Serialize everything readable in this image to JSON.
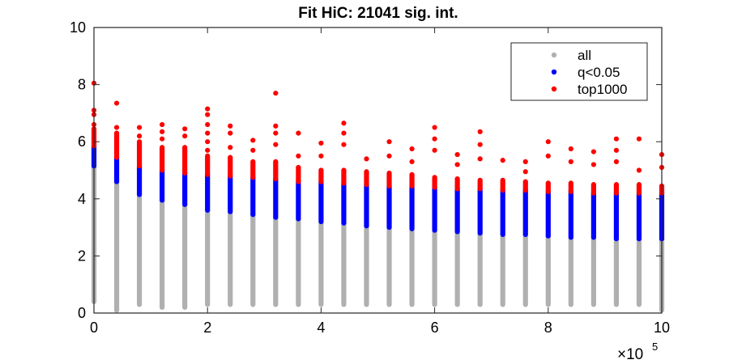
{
  "chart_data": {
    "type": "scatter",
    "title": "Fit HiC: 21041 sig. int.",
    "xlabel": "",
    "ylabel": "",
    "xlim": [
      0,
      1000000
    ],
    "ylim": [
      0,
      10
    ],
    "x_ticks": [
      0,
      200000,
      400000,
      600000,
      800000,
      1000000
    ],
    "x_tick_labels": [
      "0",
      "2",
      "4",
      "6",
      "8",
      "10"
    ],
    "x_exponent": {
      "base": "×10",
      "power": "5"
    },
    "y_ticks": [
      0,
      2,
      4,
      6,
      8,
      10
    ],
    "y_tick_labels": [
      "0",
      "2",
      "4",
      "6",
      "8",
      "10"
    ],
    "grid": false,
    "legend": {
      "position": "top-right",
      "entries": [
        {
          "label": "all",
          "color": "#b0b0b0"
        },
        {
          "label": "q<0.05",
          "color": "#0000ff"
        },
        {
          "label": "top1000",
          "color": "#ff0000"
        }
      ]
    },
    "distance_bins": [
      0,
      40000,
      80000,
      120000,
      160000,
      200000,
      240000,
      280000,
      320000,
      360000,
      400000,
      440000,
      480000,
      520000,
      560000,
      600000,
      640000,
      680000,
      720000,
      760000,
      800000,
      840000,
      880000,
      920000,
      960000,
      1000000
    ],
    "series": [
      {
        "name": "all",
        "color": "#b0b0b0",
        "ymin": [
          0.4,
          0.1,
          0.3,
          0.2,
          0.2,
          0.3,
          0.3,
          0.3,
          0.3,
          0.3,
          0.3,
          0.3,
          0.3,
          0.3,
          0.3,
          0.3,
          0.3,
          0.3,
          0.3,
          0.3,
          0.3,
          0.3,
          0.3,
          0.3,
          0.3,
          0.1
        ],
        "ymax": [
          5.15,
          4.6,
          4.15,
          3.95,
          3.8,
          3.6,
          3.55,
          3.45,
          3.35,
          3.3,
          3.2,
          3.15,
          3.05,
          3.0,
          2.95,
          2.9,
          2.85,
          2.8,
          2.75,
          2.75,
          2.7,
          2.65,
          2.65,
          2.6,
          2.6,
          2.6
        ]
      },
      {
        "name": "q<0.05",
        "color": "#0000ff",
        "ymin": [
          5.15,
          4.6,
          4.15,
          3.95,
          3.8,
          3.6,
          3.55,
          3.45,
          3.35,
          3.3,
          3.2,
          3.15,
          3.05,
          3.0,
          2.95,
          2.9,
          2.85,
          2.8,
          2.75,
          2.75,
          2.7,
          2.65,
          2.65,
          2.6,
          2.6,
          2.6
        ],
        "ymax": [
          5.85,
          5.45,
          5.15,
          5.0,
          4.9,
          4.85,
          4.8,
          4.75,
          4.7,
          4.6,
          4.6,
          4.55,
          4.5,
          4.45,
          4.45,
          4.4,
          4.35,
          4.35,
          4.3,
          4.3,
          4.25,
          4.25,
          4.2,
          4.2,
          4.2,
          4.2
        ]
      },
      {
        "name": "top1000",
        "color": "#ff0000",
        "ymin": [
          5.85,
          5.45,
          5.15,
          5.0,
          4.9,
          4.85,
          4.8,
          4.75,
          4.7,
          4.6,
          4.6,
          4.55,
          4.5,
          4.45,
          4.45,
          4.4,
          4.35,
          4.35,
          4.3,
          4.3,
          4.25,
          4.25,
          4.2,
          4.2,
          4.2,
          4.2
        ],
        "ymax": [
          6.45,
          6.3,
          6.0,
          5.8,
          5.8,
          5.5,
          5.45,
          5.3,
          5.3,
          5.1,
          5.0,
          5.0,
          4.95,
          4.9,
          4.85,
          4.75,
          4.7,
          4.65,
          4.65,
          4.6,
          4.55,
          4.55,
          4.5,
          4.5,
          4.5,
          4.45
        ],
        "outliers": [
          [
            0,
            8.05
          ],
          [
            0,
            7.1
          ],
          [
            0,
            6.95
          ],
          [
            0,
            6.6
          ],
          [
            40000,
            7.35
          ],
          [
            40000,
            6.5
          ],
          [
            80000,
            6.5
          ],
          [
            80000,
            6.2
          ],
          [
            120000,
            6.6
          ],
          [
            120000,
            6.35
          ],
          [
            120000,
            6.1
          ],
          [
            160000,
            6.45
          ],
          [
            160000,
            6.2
          ],
          [
            200000,
            7.15
          ],
          [
            200000,
            6.95
          ],
          [
            200000,
            6.6
          ],
          [
            200000,
            6.3
          ],
          [
            200000,
            6.0
          ],
          [
            200000,
            5.7
          ],
          [
            240000,
            6.55
          ],
          [
            240000,
            6.3
          ],
          [
            240000,
            5.8
          ],
          [
            280000,
            6.05
          ],
          [
            280000,
            5.7
          ],
          [
            320000,
            7.7
          ],
          [
            320000,
            6.55
          ],
          [
            320000,
            6.3
          ],
          [
            320000,
            5.9
          ],
          [
            360000,
            6.3
          ],
          [
            360000,
            5.5
          ],
          [
            400000,
            5.95
          ],
          [
            400000,
            5.5
          ],
          [
            440000,
            6.65
          ],
          [
            440000,
            6.3
          ],
          [
            440000,
            5.9
          ],
          [
            480000,
            5.4
          ],
          [
            520000,
            6.0
          ],
          [
            520000,
            5.5
          ],
          [
            560000,
            5.75
          ],
          [
            560000,
            5.3
          ],
          [
            600000,
            6.5
          ],
          [
            600000,
            6.1
          ],
          [
            600000,
            5.7
          ],
          [
            640000,
            5.55
          ],
          [
            640000,
            5.2
          ],
          [
            680000,
            6.35
          ],
          [
            680000,
            5.9
          ],
          [
            680000,
            5.4
          ],
          [
            720000,
            5.35
          ],
          [
            760000,
            5.3
          ],
          [
            760000,
            4.95
          ],
          [
            800000,
            6.0
          ],
          [
            800000,
            5.5
          ],
          [
            840000,
            5.75
          ],
          [
            840000,
            5.3
          ],
          [
            880000,
            5.65
          ],
          [
            880000,
            5.2
          ],
          [
            920000,
            6.1
          ],
          [
            920000,
            5.7
          ],
          [
            920000,
            5.3
          ],
          [
            960000,
            6.1
          ],
          [
            960000,
            5.0
          ],
          [
            1000000,
            5.55
          ],
          [
            1000000,
            5.1
          ]
        ]
      }
    ]
  }
}
